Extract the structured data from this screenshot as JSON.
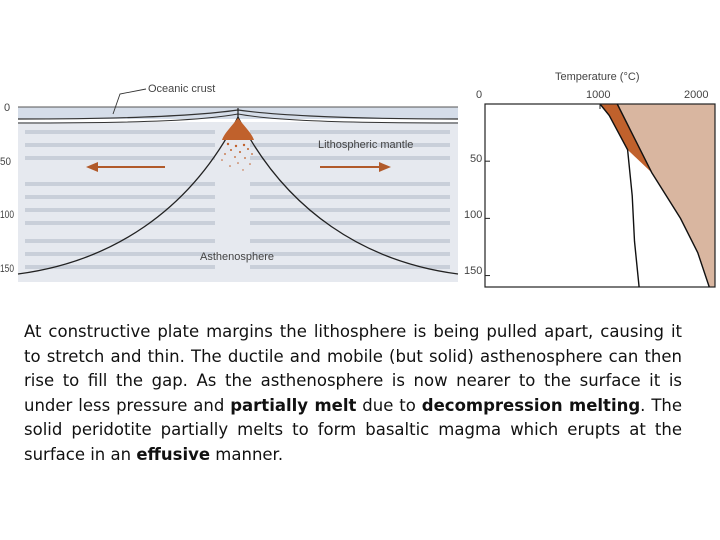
{
  "left_diagram": {
    "labels": {
      "oceanic_crust": "Oceanic crust",
      "lithospheric_mantle": "Lithospheric mantle",
      "asthenosphere": "Asthenosphere"
    },
    "depth_ticks": [
      "0",
      "50",
      "100",
      "150"
    ]
  },
  "right_chart": {
    "title": "Temperature (°C)",
    "x_ticks": [
      "0",
      "1000",
      "2000"
    ],
    "y_ticks": [
      "50",
      "100",
      "150"
    ]
  },
  "chart_data": {
    "type": "line",
    "title": "Temperature (°C)",
    "xlabel": "Temperature (°C)",
    "ylabel": "",
    "xlim": [
      0,
      2000
    ],
    "ylim": [
      0,
      160
    ],
    "y_inverted": true,
    "series": [
      {
        "x": [
          1000,
          1080,
          1240,
          1280,
          1300,
          1340
        ],
        "y": [
          0,
          10,
          40,
          80,
          120,
          160
        ]
      },
      {
        "x": [
          1150,
          1250,
          1450,
          1700,
          1850,
          1950
        ],
        "y": [
          0,
          20,
          60,
          100,
          130,
          160
        ]
      }
    ]
  },
  "caption": {
    "p1": "At constructive plate margins the lithosphere is being pulled apart, causing it to stretch and thin. The ductile and mobile (but solid) asthenosphere can then rise to fill the gap. As the asthenosphere is now nearer to the surface it is under less pressure and ",
    "b1": "partially melt",
    "p2": " due to ",
    "b2": "decompression melting",
    "p3": ". The solid peridotite partially melts to form basaltic magma which erupts at the surface in an ",
    "b3": "effusive",
    "p4": " manner."
  },
  "colors": {
    "melt": "#c0612c",
    "asthenosphere_fill": "#d9b6a0",
    "ocean": "#d5dde9",
    "background_text": "#c8ced8"
  }
}
